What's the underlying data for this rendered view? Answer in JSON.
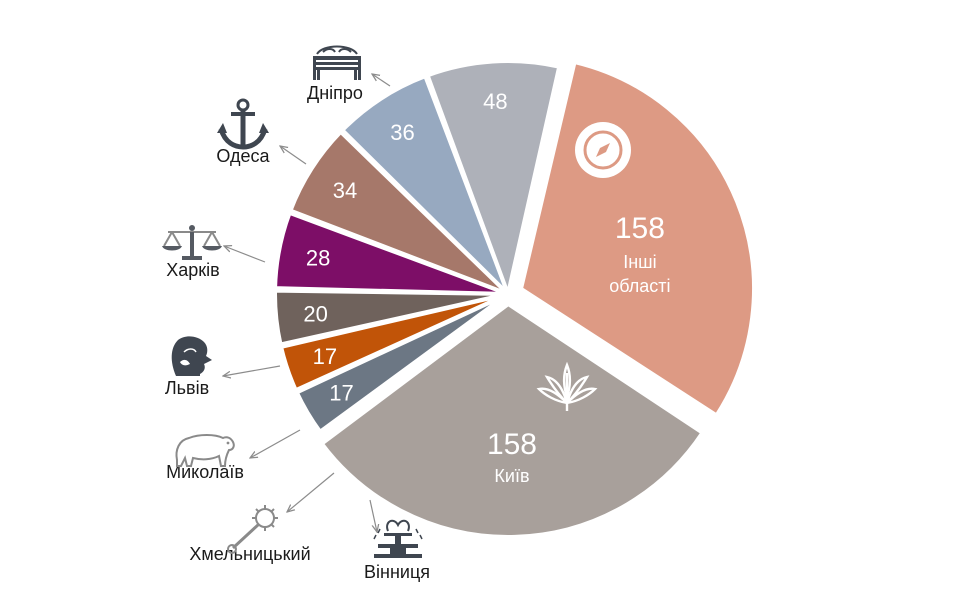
{
  "chart_data": {
    "type": "pie",
    "title": "",
    "slices": [
      {
        "label": "Інші області",
        "label_lines": [
          "Інші",
          "області"
        ],
        "value": 158,
        "color": "#dd9a84",
        "icon": "compass-icon",
        "inner": true
      },
      {
        "label": "Київ",
        "value": 158,
        "color": "#a8a09b",
        "icon": "chestnut-leaf-icon",
        "inner": true
      },
      {
        "label": "Вінниця",
        "value": 17,
        "color": "#6c7784",
        "icon": "fountain-icon"
      },
      {
        "label": "Хмельницький",
        "value": 17,
        "color": "#c15408",
        "icon": "mace-icon"
      },
      {
        "label": "Миколаїв",
        "value": 20,
        "color": "#6f625c",
        "icon": "bear-icon"
      },
      {
        "label": "Львів",
        "value": 28,
        "color": "#7d0e67",
        "icon": "lion-icon"
      },
      {
        "label": "Харків",
        "value": 34,
        "color": "#a6786a",
        "icon": "scales-icon"
      },
      {
        "label": "Одеса",
        "value": 36,
        "color": "#97a9c0",
        "icon": "anchor-icon"
      },
      {
        "label": "Дніпро",
        "value": 48,
        "color": "#aeb1b9",
        "icon": "bench-icon"
      }
    ]
  }
}
